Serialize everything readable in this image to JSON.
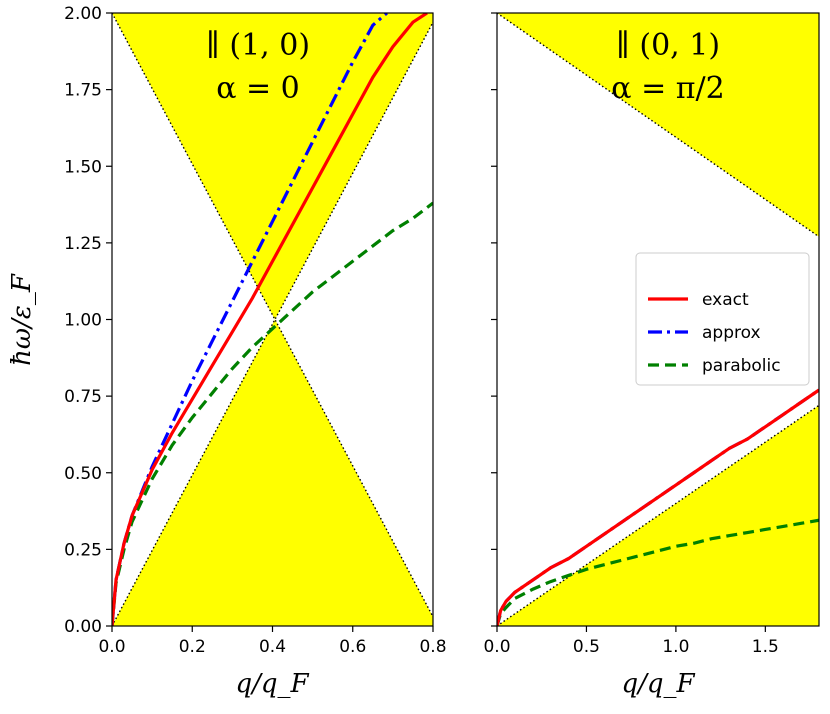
{
  "colors": {
    "region": "#ffff00",
    "exact": "#ff0000",
    "approx": "#0000ff",
    "parabolic": "#008000",
    "boundary": "#000000"
  },
  "ylabel": "ħω/ε_F",
  "legend": {
    "placement": "right-panel, center-right",
    "entries": [
      {
        "key": "exact",
        "label": "exact",
        "style": "solid"
      },
      {
        "key": "approx",
        "label": "approx",
        "style": "dashdot"
      },
      {
        "key": "parabolic",
        "label": "parabolic",
        "style": "dashed"
      }
    ]
  },
  "chart_data": [
    {
      "type": "line",
      "panel": "left",
      "annotation_line1": "∥ (1, 0)",
      "annotation_line2": "α = 0",
      "xlabel": "q/q_F",
      "xlim": [
        0,
        0.8
      ],
      "ylim": [
        0,
        2
      ],
      "xticks": [
        "0.0",
        "0.2",
        "0.4",
        "0.6",
        "0.8"
      ],
      "xtick_values": [
        0,
        0.2,
        0.4,
        0.6,
        0.8
      ],
      "yticks": [
        "0.00",
        "0.25",
        "0.50",
        "0.75",
        "1.00",
        "1.25",
        "1.50",
        "1.75",
        "2.00"
      ],
      "ytick_values": [
        0,
        0.25,
        0.5,
        0.75,
        1.0,
        1.25,
        1.5,
        1.75,
        2.0
      ],
      "boundaries": [
        {
          "x": [
            0,
            0.8
          ],
          "y": [
            0,
            1.97
          ]
        },
        {
          "x": [
            0,
            0.8
          ],
          "y": [
            2.0,
            0.03
          ]
        }
      ],
      "series": [
        {
          "name": "exact",
          "x": [
            0,
            0.01,
            0.03,
            0.05,
            0.1,
            0.15,
            0.2,
            0.25,
            0.3,
            0.35,
            0.4,
            0.45,
            0.5,
            0.55,
            0.6,
            0.65,
            0.7,
            0.75,
            0.785
          ],
          "y": [
            0,
            0.15,
            0.27,
            0.36,
            0.51,
            0.63,
            0.74,
            0.85,
            0.96,
            1.07,
            1.19,
            1.31,
            1.43,
            1.55,
            1.67,
            1.79,
            1.89,
            1.97,
            2.0
          ]
        },
        {
          "name": "approx",
          "x": [
            0,
            0.01,
            0.03,
            0.05,
            0.1,
            0.15,
            0.2,
            0.25,
            0.3,
            0.35,
            0.4,
            0.45,
            0.5,
            0.55,
            0.6,
            0.65,
            0.685
          ],
          "y": [
            0,
            0.15,
            0.27,
            0.36,
            0.52,
            0.66,
            0.8,
            0.93,
            1.06,
            1.19,
            1.32,
            1.45,
            1.58,
            1.71,
            1.84,
            1.96,
            2.0
          ]
        },
        {
          "name": "parabolic",
          "x": [
            0,
            0.01,
            0.03,
            0.05,
            0.1,
            0.15,
            0.2,
            0.25,
            0.3,
            0.35,
            0.4,
            0.45,
            0.5,
            0.55,
            0.6,
            0.65,
            0.7,
            0.75,
            0.8
          ],
          "y": [
            0,
            0.14,
            0.25,
            0.34,
            0.48,
            0.59,
            0.68,
            0.76,
            0.84,
            0.91,
            0.97,
            1.03,
            1.09,
            1.14,
            1.19,
            1.24,
            1.29,
            1.33,
            1.38
          ]
        }
      ]
    },
    {
      "type": "line",
      "panel": "right",
      "annotation_line1": "∥ (0, 1)",
      "annotation_line2": "α = π/2",
      "xlabel": "q/q_F",
      "xlim": [
        0,
        1.8
      ],
      "ylim": [
        0,
        2
      ],
      "xticks": [
        "0.0",
        "0.5",
        "1.0",
        "1.5"
      ],
      "xtick_values": [
        0,
        0.5,
        1.0,
        1.5
      ],
      "boundaries": [
        {
          "x": [
            0,
            1.8
          ],
          "y": [
            0,
            0.72
          ]
        },
        {
          "x": [
            0,
            1.8
          ],
          "y": [
            2.0,
            1.27
          ]
        }
      ],
      "series": [
        {
          "name": "exact",
          "x": [
            0,
            0.02,
            0.05,
            0.1,
            0.2,
            0.3,
            0.4,
            0.5,
            0.6,
            0.7,
            0.8,
            0.9,
            1.0,
            1.1,
            1.2,
            1.3,
            1.4,
            1.5,
            1.6,
            1.7,
            1.8
          ],
          "y": [
            0,
            0.05,
            0.08,
            0.11,
            0.15,
            0.19,
            0.22,
            0.26,
            0.3,
            0.34,
            0.38,
            0.42,
            0.46,
            0.5,
            0.54,
            0.58,
            0.61,
            0.65,
            0.69,
            0.73,
            0.77
          ]
        },
        {
          "name": "approx",
          "x": [
            0,
            0.02,
            0.05,
            0.1,
            0.2,
            0.3,
            0.4,
            0.5,
            0.6,
            0.7,
            0.8,
            0.9,
            1.0,
            1.1,
            1.2,
            1.3,
            1.4,
            1.5,
            1.6,
            1.7,
            1.8
          ],
          "y": [
            0,
            0.05,
            0.08,
            0.11,
            0.15,
            0.19,
            0.22,
            0.26,
            0.3,
            0.34,
            0.38,
            0.42,
            0.46,
            0.5,
            0.54,
            0.58,
            0.61,
            0.65,
            0.69,
            0.73,
            0.77
          ]
        },
        {
          "name": "parabolic",
          "x": [
            0,
            0.02,
            0.05,
            0.1,
            0.2,
            0.3,
            0.4,
            0.5,
            0.6,
            0.7,
            0.8,
            0.9,
            1.0,
            1.1,
            1.2,
            1.3,
            1.4,
            1.5,
            1.6,
            1.7,
            1.8
          ],
          "y": [
            0,
            0.04,
            0.06,
            0.09,
            0.12,
            0.145,
            0.165,
            0.185,
            0.2,
            0.215,
            0.23,
            0.245,
            0.26,
            0.27,
            0.285,
            0.295,
            0.305,
            0.315,
            0.325,
            0.335,
            0.345
          ]
        }
      ]
    }
  ]
}
